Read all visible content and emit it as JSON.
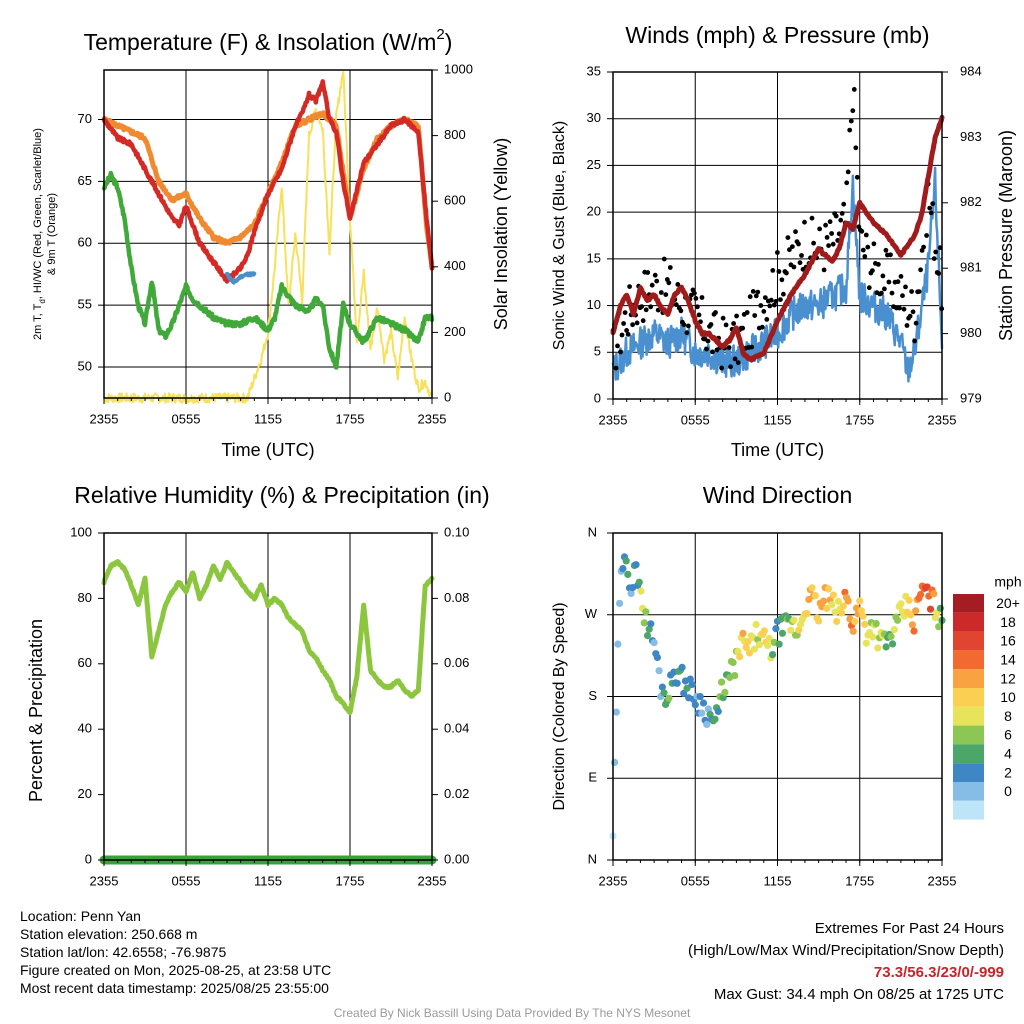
{
  "panels": {
    "temperature": {
      "title": "Temperature (F) & Insolation (W/m²)",
      "title_main": "Temperature (F) & Insolation (W/m",
      "title_sup": "2",
      "title_end": ")",
      "xlabel": "Time (UTC)",
      "ylabel_left_line1": "2m T, T",
      "ylabel_left_sub": "d",
      "ylabel_left_rest": ", HI/WC (Red, Green, Scarlet/Blue)",
      "ylabel_left_line2": "& 9m T (Orange)",
      "ylabel_right": "Solar Insolation (Yellow)",
      "yticks_left": [
        "50",
        "55",
        "60",
        "65",
        "70"
      ],
      "yticks_right": [
        "0",
        "200",
        "400",
        "600",
        "800",
        "1000"
      ],
      "xticks": [
        "2355",
        "0555",
        "1155",
        "1755",
        "2355"
      ]
    },
    "winds": {
      "title": "Winds (mph) & Pressure (mb)",
      "xlabel": "Time (UTC)",
      "ylabel_left": "Sonic Wind & Gust (Blue, Black)",
      "ylabel_right": "Station Pressure (Maroon)",
      "yticks_left": [
        "0",
        "5",
        "10",
        "15",
        "20",
        "25",
        "30",
        "35"
      ],
      "yticks_right": [
        "979",
        "980",
        "981",
        "982",
        "983",
        "984"
      ],
      "xticks": [
        "2355",
        "0555",
        "1155",
        "1755",
        "2355"
      ]
    },
    "humidity": {
      "title": "Relative Humidity (%) & Precipitation (in)",
      "ylabel_left": "Percent & Precipitation",
      "yticks_left": [
        "0",
        "20",
        "40",
        "60",
        "80",
        "100"
      ],
      "yticks_right": [
        "0.00",
        "0.02",
        "0.04",
        "0.06",
        "0.08",
        "0.10"
      ],
      "xticks": [
        "2355",
        "0555",
        "1155",
        "1755",
        "2355"
      ]
    },
    "direction": {
      "title": "Wind Direction",
      "ylabel_left": "Direction (Colored By Speed)",
      "yticks_left": [
        "N",
        "E",
        "S",
        "W",
        "N"
      ],
      "xticks": [
        "2355",
        "0555",
        "1155",
        "1755",
        "2355"
      ],
      "legend_title": "mph",
      "legend_labels": [
        "20+",
        "18",
        "16",
        "14",
        "12",
        "10",
        "8",
        "6",
        "4",
        "2",
        "0"
      ],
      "legend_colors": [
        "#a51c22",
        "#cc2a2a",
        "#e04530",
        "#f26a30",
        "#f9a242",
        "#fbd052",
        "#e7e35a",
        "#8cc653",
        "#4ca66a",
        "#3f86c4",
        "#86bde6",
        "#bde5f7"
      ]
    }
  },
  "info": {
    "location": "Location: Penn Yan",
    "elevation": "Station elevation: 250.668 m",
    "latlon": "Station lat/lon: 42.6558; -76.9875",
    "created": "Figure created on Mon, 2025-08-25, at 23:58 UTC",
    "recent": "Most recent data timestamp: 2025/08/25 23:55:00"
  },
  "extremes": {
    "title": "Extremes For Past 24 Hours",
    "subtitle": "(High/Low/Max Wind/Precipitation/Snow Depth)",
    "values": "73.3/56.3/23/0/-999",
    "max_gust": "Max Gust: 34.4 mph On 08/25 at 1725 UTC"
  },
  "credit": "Created By Nick Bassill Using Data Provided By The NYS Mesonet",
  "colors": {
    "temp": "#d42a26",
    "dewpoint": "#41a83a",
    "nine_m": "#f08a30",
    "wind_chill": "#4a90c8",
    "solar": "#f7e05a",
    "sonic": "#4a90d0",
    "gust": "#000000",
    "pressure": "#a01c1c",
    "rh": "#8cc63f",
    "precip": "#3aa03a"
  },
  "chart_data": [
    {
      "type": "line",
      "title": "Temperature (F) & Insolation (W/m2)",
      "xlabel": "Time (UTC)",
      "xrange_hours": [
        0,
        24
      ],
      "ylim": [
        47.5,
        74
      ],
      "ylim_right": [
        0,
        1000
      ],
      "series": [
        {
          "name": "2m T",
          "axis": "left",
          "x": [
            0,
            1,
            2,
            3,
            4,
            5,
            5.5,
            6,
            7,
            8,
            9,
            10,
            10.5,
            11,
            12,
            13,
            14,
            14.5,
            15,
            15.5,
            16,
            16.5,
            17,
            17.5,
            18,
            19,
            20,
            21,
            22,
            23,
            23.6,
            24
          ],
          "y": [
            70,
            68.5,
            68,
            66,
            64,
            62,
            61.5,
            63,
            60,
            58.5,
            57,
            58,
            59,
            61,
            64,
            66,
            69.5,
            70.5,
            72,
            71.5,
            73,
            70,
            69,
            65,
            62,
            66.5,
            68,
            69.5,
            70,
            69,
            62,
            58
          ]
        },
        {
          "name": "9m T",
          "axis": "left",
          "x": [
            0,
            1,
            2,
            3,
            4,
            5,
            6,
            7,
            8,
            9,
            10,
            11,
            12,
            13,
            14,
            15,
            16,
            17,
            18,
            19,
            20,
            21,
            22,
            23,
            23.6,
            24
          ],
          "y": [
            70,
            69.5,
            69,
            68.5,
            65,
            63.5,
            64,
            62,
            60.5,
            60,
            60.5,
            61.5,
            64,
            66.5,
            69.5,
            70,
            70.5,
            69.5,
            62,
            66,
            68.5,
            69.5,
            70,
            69.5,
            61.5,
            58
          ]
        },
        {
          "name": "Td",
          "axis": "left",
          "x": [
            0,
            0.5,
            1,
            1.5,
            2,
            2.5,
            3,
            3.5,
            4,
            4.5,
            5,
            5.5,
            6,
            6.5,
            7,
            7.5,
            8,
            9,
            10,
            11,
            12,
            12.5,
            13,
            14,
            15,
            15.5,
            16,
            16.5,
            17,
            17.5,
            18,
            19,
            19.5,
            20,
            21,
            22,
            23,
            23.5,
            24
          ],
          "y": [
            64.5,
            65.5,
            64.5,
            62,
            58,
            55,
            53.5,
            57,
            53,
            52.5,
            53.5,
            55,
            56.5,
            55.5,
            55,
            54.5,
            54,
            53.5,
            53.5,
            54,
            53,
            54,
            56.5,
            55,
            54.5,
            55.5,
            55,
            51.5,
            50,
            55,
            53.5,
            52,
            53,
            54,
            53.5,
            53,
            52,
            54,
            54
          ]
        },
        {
          "name": "HI/WC",
          "axis": "left",
          "x": [
            9,
            9.5,
            10,
            10.5,
            11
          ],
          "y": [
            57.5,
            56.8,
            57.3,
            57.5,
            57.5
          ]
        },
        {
          "name": "Solar",
          "axis": "right",
          "x": [
            0,
            10.5,
            11,
            11.5,
            12,
            12.5,
            13,
            13.5,
            14,
            14.5,
            15,
            15.5,
            16,
            16.5,
            17,
            17.5,
            18,
            18.5,
            19,
            19.5,
            20,
            20.5,
            21,
            21.5,
            22,
            22.5,
            23,
            23.5,
            24
          ],
          "y": [
            0,
            0,
            60,
            120,
            200,
            400,
            650,
            280,
            500,
            300,
            800,
            880,
            820,
            450,
            860,
            1000,
            550,
            180,
            380,
            150,
            280,
            120,
            200,
            60,
            250,
            120,
            30,
            50,
            0
          ]
        }
      ]
    },
    {
      "type": "line",
      "title": "Winds (mph) & Pressure (mb)",
      "xlabel": "Time (UTC)",
      "xrange_hours": [
        0,
        24
      ],
      "ylim": [
        0,
        35
      ],
      "ylim_right": [
        979,
        984
      ],
      "series": [
        {
          "name": "Sonic Wind",
          "axis": "left",
          "x": [
            0,
            1,
            2,
            3,
            4,
            5,
            6,
            7,
            8,
            9,
            10,
            11,
            12,
            13,
            14,
            15,
            16,
            17,
            17.5,
            18,
            19,
            20,
            21,
            21.5,
            22,
            23,
            23.5,
            24
          ],
          "y": [
            3,
            5,
            6,
            7,
            6,
            7,
            5,
            5,
            4,
            4,
            5,
            6,
            7,
            9,
            10,
            10,
            11,
            12,
            23,
            11,
            10,
            9,
            6,
            3,
            5,
            14,
            23,
            6
          ]
        },
        {
          "name": "Gust",
          "axis": "left",
          "x": [
            0,
            1,
            2,
            3,
            4,
            5,
            6,
            7,
            8,
            9,
            10,
            11,
            12,
            13,
            14,
            15,
            16,
            17,
            17.5,
            18,
            19,
            20,
            21,
            22,
            23,
            24
          ],
          "y": [
            5,
            9,
            11,
            12,
            12,
            10,
            9,
            7,
            6,
            6,
            8,
            11,
            13,
            15,
            17,
            16,
            17,
            19,
            34,
            17,
            14,
            13,
            11,
            9,
            22,
            12
          ]
        },
        {
          "name": "Pressure",
          "axis": "right",
          "x": [
            0,
            0.5,
            1,
            1.5,
            2,
            2.5,
            3,
            3.5,
            4,
            4.5,
            5,
            5.5,
            6,
            6.5,
            7,
            7.5,
            8,
            8.5,
            9,
            9.5,
            10,
            11,
            12,
            13,
            14,
            15,
            16,
            16.5,
            17,
            17.5,
            18,
            19,
            20,
            21,
            22,
            22.5,
            23,
            23.5,
            24
          ],
          "y": [
            980,
            980.4,
            980.6,
            980.3,
            980.7,
            980.5,
            980.6,
            980.4,
            980.3,
            980.6,
            980.7,
            980.5,
            980.2,
            980,
            980,
            979.9,
            979.8,
            979.9,
            980.1,
            979.7,
            979.6,
            979.7,
            980.2,
            980.6,
            980.9,
            981.3,
            981.1,
            981.3,
            981.7,
            981.6,
            982,
            981.7,
            981.5,
            981.2,
            981.5,
            981.8,
            982.4,
            983,
            983.3
          ]
        }
      ]
    },
    {
      "type": "line",
      "title": "Relative Humidity (%) & Precipitation (in)",
      "xrange_hours": [
        0,
        24
      ],
      "ylim": [
        0,
        100
      ],
      "ylim_right": [
        0,
        0.1
      ],
      "series": [
        {
          "name": "RH",
          "axis": "left",
          "x": [
            0,
            0.5,
            1,
            1.5,
            2,
            2.5,
            3,
            3.5,
            4,
            4.5,
            5,
            5.5,
            6,
            6.5,
            7,
            7.5,
            8,
            8.5,
            9,
            9.5,
            10,
            10.5,
            11,
            11.5,
            12,
            12.5,
            13,
            13.5,
            14,
            14.5,
            15,
            15.5,
            16,
            16.5,
            17,
            17.5,
            18,
            18.5,
            19,
            19.5,
            20,
            20.5,
            21,
            21.5,
            22,
            22.5,
            23,
            23.5,
            24
          ],
          "y": [
            85,
            90,
            91,
            89,
            84,
            78,
            86,
            62,
            70,
            78,
            82,
            85,
            82,
            88,
            80,
            84,
            90,
            86,
            91,
            88,
            85,
            82,
            80,
            84,
            78,
            80,
            78,
            74,
            72,
            70,
            64,
            62,
            58,
            55,
            50,
            48,
            45,
            56,
            78,
            58,
            55,
            53,
            53,
            55,
            52,
            50,
            52,
            84,
            86
          ]
        },
        {
          "name": "Precipitation",
          "axis": "right",
          "x": [
            0,
            24
          ],
          "y": [
            0,
            0
          ]
        }
      ]
    },
    {
      "type": "scatter",
      "title": "Wind Direction",
      "xrange_hours": [
        0,
        24
      ],
      "ylim": [
        0,
        360
      ],
      "series": [
        {
          "name": "Direction",
          "x": [
            0,
            0.5,
            0.8,
            1,
            1.2,
            1.4,
            1.6,
            1.8,
            2,
            2.2,
            2.5,
            3,
            3.5,
            4,
            4.5,
            5,
            5.5,
            6,
            6.5,
            7,
            7.5,
            8,
            8.5,
            9,
            9.5,
            10,
            10.5,
            11,
            11.5,
            12,
            13,
            13.5,
            14,
            14.5,
            15,
            15.5,
            16,
            16.5,
            17,
            17.5,
            18,
            18.5,
            19,
            19.5,
            20,
            20.5,
            21,
            21.5,
            22,
            22.5,
            23,
            23.5,
            24
          ],
          "y": [
            30,
            300,
            320,
            340,
            310,
            300,
            330,
            290,
            320,
            270,
            260,
            240,
            190,
            180,
            210,
            200,
            190,
            180,
            170,
            160,
            150,
            190,
            200,
            220,
            240,
            230,
            250,
            240,
            230,
            250,
            260,
            250,
            280,
            290,
            270,
            290,
            280,
            270,
            290,
            260,
            280,
            250,
            260,
            240,
            240,
            250,
            270,
            280,
            260,
            300,
            290,
            280,
            260
          ],
          "speed": [
            1,
            4,
            4,
            5,
            4,
            4,
            6,
            4,
            8,
            10,
            6,
            4,
            3,
            6,
            4,
            5,
            4,
            3,
            3,
            4,
            6,
            6,
            8,
            10,
            12,
            10,
            8,
            12,
            10,
            4,
            8,
            10,
            12,
            14,
            12,
            14,
            12,
            10,
            16,
            14,
            12,
            10,
            8,
            10,
            6,
            8,
            10,
            12,
            14,
            16,
            18,
            12,
            6
          ]
        }
      ]
    }
  ]
}
